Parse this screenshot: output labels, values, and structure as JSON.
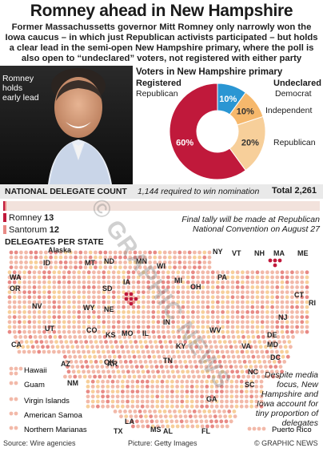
{
  "title": "Romney ahead in New Hampshire",
  "intro": "Former Massachussetts governor Mitt Romney only narrowly won the Iowa caucus – in which just Republican activists participated – but holds a clear lead in the semi-open New Hampshire primary, where the poll is also open to “undeclared” voters, not registered with either party",
  "photo_label": "Romney holds early lead",
  "colors": {
    "republican": "#c0193b",
    "democrat": "#2a96d3",
    "independent": "#f6b86c",
    "dot_light": "#f2b9a9",
    "dot_mid": "#e88a85",
    "dot_dark": "#c0193b",
    "dot_pale": "#f7cf9a"
  },
  "chart_data": [
    {
      "type": "pie",
      "title": "Voters in New Hampshire primary",
      "groups": [
        {
          "name": "Registered Republican",
          "value": 60,
          "label": "60%"
        },
        {
          "name": "Undeclared Democrat",
          "value": 10,
          "label": "10%"
        },
        {
          "name": "Undeclared Independent",
          "value": 10,
          "label": "10%"
        },
        {
          "name": "Undeclared Republican",
          "value": 20,
          "label": "20%"
        }
      ]
    },
    {
      "type": "bar",
      "title": "NATIONAL DELEGATE COUNT",
      "note": "1,144 required to win nomination",
      "total_label": "Total 2,261",
      "total": 2261,
      "series": [
        {
          "name": "Romney",
          "value": 13
        },
        {
          "name": "Santorum",
          "value": 12
        }
      ]
    }
  ],
  "pie_labels": {
    "registered": "Registered",
    "registered_sub": "Republican",
    "undeclared": "Undeclared",
    "democrat": "Democrat",
    "independent": "Independent",
    "republican": "Republican"
  },
  "legend": {
    "romney_name": "Romney",
    "romney_value": "13",
    "santorum_name": "Santorum",
    "santorum_value": "12"
  },
  "final_note": "Final tally will be made at Republican National Convention on August 27",
  "delegates_title": "DELEGATES PER STATE",
  "states": [
    {
      "abbr": "Alaska"
    },
    {
      "abbr": "WA"
    },
    {
      "abbr": "OR"
    },
    {
      "abbr": "CA"
    },
    {
      "abbr": "NV"
    },
    {
      "abbr": "ID"
    },
    {
      "abbr": "MT"
    },
    {
      "abbr": "WY"
    },
    {
      "abbr": "UT"
    },
    {
      "abbr": "AZ"
    },
    {
      "abbr": "NM"
    },
    {
      "abbr": "CO"
    },
    {
      "abbr": "ND"
    },
    {
      "abbr": "SD"
    },
    {
      "abbr": "NE"
    },
    {
      "abbr": "KS"
    },
    {
      "abbr": "OK"
    },
    {
      "abbr": "TX"
    },
    {
      "abbr": "MN"
    },
    {
      "abbr": "IA"
    },
    {
      "abbr": "MO"
    },
    {
      "abbr": "AR"
    },
    {
      "abbr": "LA"
    },
    {
      "abbr": "WI"
    },
    {
      "abbr": "IL"
    },
    {
      "abbr": "MI"
    },
    {
      "abbr": "IN"
    },
    {
      "abbr": "OH"
    },
    {
      "abbr": "KY"
    },
    {
      "abbr": "TN"
    },
    {
      "abbr": "MS"
    },
    {
      "abbr": "AL"
    },
    {
      "abbr": "GA"
    },
    {
      "abbr": "FL"
    },
    {
      "abbr": "PA"
    },
    {
      "abbr": "WV"
    },
    {
      "abbr": "VA"
    },
    {
      "abbr": "NC"
    },
    {
      "abbr": "SC"
    },
    {
      "abbr": "NY"
    },
    {
      "abbr": "VT"
    },
    {
      "abbr": "NH"
    },
    {
      "abbr": "MA"
    },
    {
      "abbr": "ME"
    },
    {
      "abbr": "CT"
    },
    {
      "abbr": "RI"
    },
    {
      "abbr": "NJ"
    },
    {
      "abbr": "DE"
    },
    {
      "abbr": "MD"
    },
    {
      "abbr": "DC"
    }
  ],
  "territories": [
    "Hawaii",
    "Guam",
    "Virgin Islands",
    "American Samoa",
    "Northern Marianas",
    "Puerto Rico"
  ],
  "despite_note": "Despite media focus, New Hampshire and Iowa account for tiny proportion of delegates",
  "footer": {
    "source": "Source: Wire agencies",
    "picture": "Picture: Getty Images",
    "credit": "© GRAPHIC NEWS"
  },
  "watermark": "© GRAPHIC NEWS"
}
